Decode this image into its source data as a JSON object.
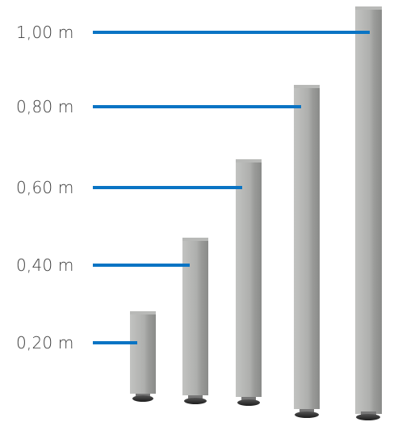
{
  "labels": [
    {
      "text": "1,00 m",
      "color": "#0a74c4"
    },
    {
      "text": "0,80 m",
      "color": "#0a74c4"
    },
    {
      "text": "0,60 m",
      "color": "#0a74c4"
    },
    {
      "text": "0,40 m",
      "color": "#0a74c4"
    },
    {
      "text": "0,20 m",
      "color": "#0a74c4"
    }
  ],
  "colors": {
    "pointer": "#0a74c4",
    "leg_face": "#a9aaa8",
    "leg_side": "#8e8f8d",
    "foot": "#2a2a2a",
    "text": "#3a3a3a"
  }
}
